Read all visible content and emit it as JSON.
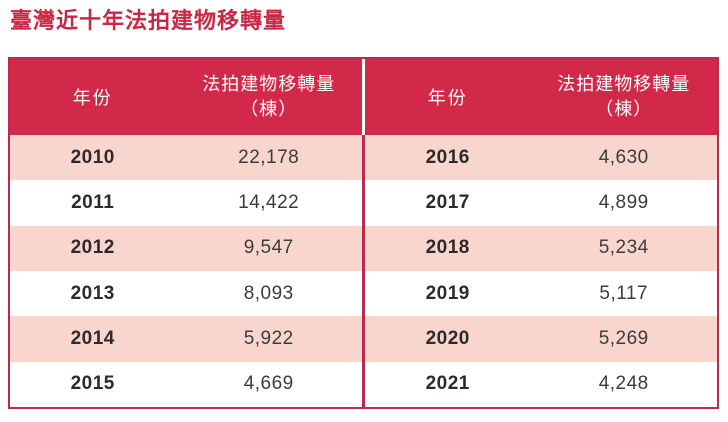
{
  "title": "臺灣近十年法拍建物移轉量",
  "table": {
    "header": {
      "year_label": "年份",
      "value_label_line1": "法拍建物移轉量",
      "value_label_line2": "（棟）"
    },
    "left_rows": [
      {
        "year": "2010",
        "value": "22,178"
      },
      {
        "year": "2011",
        "value": "14,422"
      },
      {
        "year": "2012",
        "value": "9,547"
      },
      {
        "year": "2013",
        "value": "8,093"
      },
      {
        "year": "2014",
        "value": "5,922"
      },
      {
        "year": "2015",
        "value": "4,669"
      }
    ],
    "right_rows": [
      {
        "year": "2016",
        "value": "4,630"
      },
      {
        "year": "2017",
        "value": "4,899"
      },
      {
        "year": "2018",
        "value": "5,234"
      },
      {
        "year": "2019",
        "value": "5,117"
      },
      {
        "year": "2020",
        "value": "5,269"
      },
      {
        "year": "2021",
        "value": "4,248"
      }
    ]
  },
  "chart_data": {
    "type": "table",
    "title": "臺灣近十年法拍建物移轉量",
    "columns": [
      "年份",
      "法拍建物移轉量（棟）"
    ],
    "categories": [
      "2010",
      "2011",
      "2012",
      "2013",
      "2014",
      "2015",
      "2016",
      "2017",
      "2018",
      "2019",
      "2020",
      "2021"
    ],
    "values": [
      22178,
      14422,
      9547,
      8093,
      5922,
      4669,
      4630,
      4899,
      5234,
      5117,
      5269,
      4248
    ]
  },
  "colors": {
    "header_bg": "#d2294a",
    "row_alt_bg": "#f8d6ce",
    "border": "#b92a4c",
    "title": "#c92845",
    "header_text": "#ffffff",
    "year_text": "#2e2a2a",
    "value_text": "#3c3c3c"
  }
}
